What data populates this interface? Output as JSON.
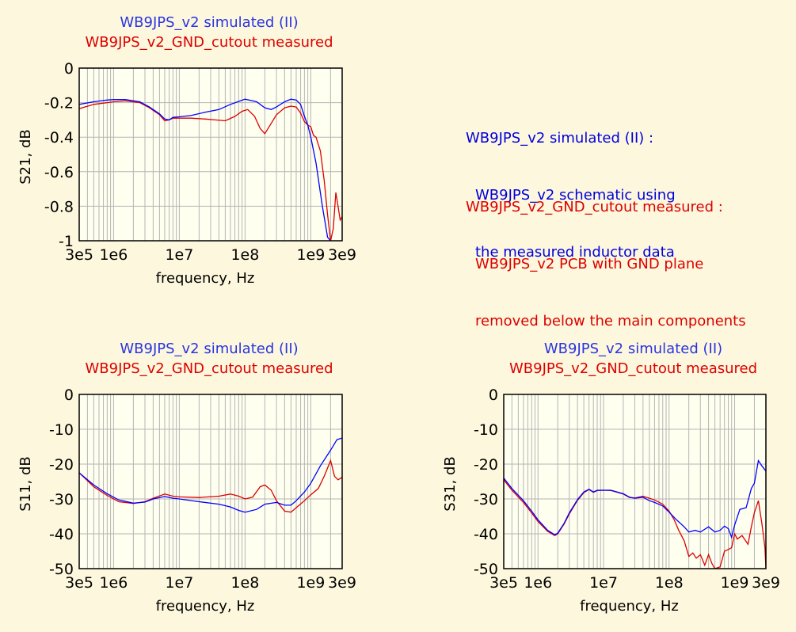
{
  "colors": {
    "background": "#fdf8dd",
    "simulated": "#0000ff",
    "measured": "#dd0000",
    "grid": "#b5b5b5",
    "frame": "#000000"
  },
  "notes": [
    {
      "color": "#0000dd",
      "lines": [
        "WB9JPS_v2 simulated (II) :",
        "WB9JPS_v2 schematic using",
        "the measured inductor data"
      ]
    },
    {
      "color": "#dd0000",
      "lines": [
        "WB9JPS_v2_GND_cutout measured :",
        "WB9JPS_v2 PCB with GND plane",
        "removed below the main components"
      ]
    }
  ],
  "chart_data": [
    {
      "id": "s21",
      "type": "line",
      "title_lines": [
        "WB9JPS_v2 simulated (II)",
        "WB9JPS_v2_GND_cutout measured"
      ],
      "xlabel": "frequency, Hz",
      "ylabel": "S21, dB",
      "x_scale": "log",
      "xlim": [
        300000.0,
        3000000000.0
      ],
      "ylim": [
        -1,
        0
      ],
      "xticks": [
        {
          "v": 300000.0,
          "label": "3e5"
        },
        {
          "v": 1000000.0,
          "label": "1e6"
        },
        {
          "v": 10000000.0,
          "label": "1e7"
        },
        {
          "v": 100000000.0,
          "label": "1e8"
        },
        {
          "v": 1000000000.0,
          "label": "1e9"
        },
        {
          "v": 3000000000.0,
          "label": "3e9"
        }
      ],
      "yticks": [
        {
          "v": 0,
          "label": "0"
        },
        {
          "v": -0.2,
          "label": "-0.2"
        },
        {
          "v": -0.4,
          "label": "-0.4"
        },
        {
          "v": -0.6,
          "label": "-0.6"
        },
        {
          "v": -0.8,
          "label": "-0.8"
        },
        {
          "v": -1,
          "label": "-1"
        }
      ],
      "grid": true,
      "series": [
        {
          "name": "WB9JPS_v2 simulated (II)",
          "color": "#0000ff",
          "x": [
            300000.0,
            500000.0,
            800000.0,
            1000000.0,
            1500000.0,
            2500000.0,
            3500000.0,
            5000000.0,
            6000000.0,
            7000000.0,
            8000000.0,
            10000000.0,
            15000000.0,
            25000000.0,
            40000000.0,
            60000000.0,
            100000000.0,
            150000000.0,
            200000000.0,
            250000000.0,
            300000000.0,
            400000000.0,
            500000000.0,
            600000000.0,
            700000000.0,
            800000000.0,
            900000000.0,
            1000000000.0,
            1200000000.0,
            1500000000.0,
            1800000000.0,
            2000000000.0
          ],
          "y": [
            -0.21,
            -0.195,
            -0.185,
            -0.182,
            -0.182,
            -0.195,
            -0.225,
            -0.265,
            -0.295,
            -0.3,
            -0.285,
            -0.282,
            -0.275,
            -0.255,
            -0.24,
            -0.21,
            -0.18,
            -0.195,
            -0.23,
            -0.24,
            -0.225,
            -0.195,
            -0.18,
            -0.185,
            -0.21,
            -0.28,
            -0.33,
            -0.4,
            -0.55,
            -0.8,
            -0.98,
            -1.0
          ]
        },
        {
          "name": "WB9JPS_v2_GND_cutout measured",
          "color": "#dd0000",
          "x": [
            300000.0,
            500000.0,
            800000.0,
            1000000.0,
            1500000.0,
            2500000.0,
            3500000.0,
            5000000.0,
            6000000.0,
            7000000.0,
            8000000.0,
            10000000.0,
            15000000.0,
            25000000.0,
            35000000.0,
            50000000.0,
            70000000.0,
            90000000.0,
            110000000.0,
            140000000.0,
            170000000.0,
            200000000.0,
            250000000.0,
            300000000.0,
            400000000.0,
            500000000.0,
            600000000.0,
            700000000.0,
            800000000.0,
            900000000.0,
            1000000000.0,
            1100000000.0,
            1200000000.0,
            1400000000.0,
            1600000000.0,
            1800000000.0,
            2000000000.0,
            2200000000.0,
            2400000000.0,
            2600000000.0,
            2800000000.0,
            3000000000.0
          ],
          "y": [
            -0.235,
            -0.21,
            -0.2,
            -0.195,
            -0.19,
            -0.2,
            -0.23,
            -0.27,
            -0.305,
            -0.3,
            -0.29,
            -0.29,
            -0.29,
            -0.295,
            -0.3,
            -0.305,
            -0.28,
            -0.25,
            -0.24,
            -0.28,
            -0.35,
            -0.38,
            -0.32,
            -0.27,
            -0.23,
            -0.22,
            -0.225,
            -0.26,
            -0.31,
            -0.33,
            -0.34,
            -0.39,
            -0.4,
            -0.48,
            -0.65,
            -0.85,
            -1.0,
            -0.93,
            -0.72,
            -0.8,
            -0.88,
            -0.86
          ]
        }
      ]
    },
    {
      "id": "s11",
      "type": "line",
      "title_lines": [
        "WB9JPS_v2 simulated (II)",
        "WB9JPS_v2_GND_cutout measured"
      ],
      "xlabel": "frequency, Hz",
      "ylabel": "S11, dB",
      "x_scale": "log",
      "xlim": [
        300000.0,
        3000000000.0
      ],
      "ylim": [
        -50,
        0
      ],
      "xticks": [
        {
          "v": 300000.0,
          "label": "3e5"
        },
        {
          "v": 1000000.0,
          "label": "1e6"
        },
        {
          "v": 10000000.0,
          "label": "1e7"
        },
        {
          "v": 100000000.0,
          "label": "1e8"
        },
        {
          "v": 1000000000.0,
          "label": "1e9"
        },
        {
          "v": 3000000000.0,
          "label": "3e9"
        }
      ],
      "yticks": [
        {
          "v": 0,
          "label": "0"
        },
        {
          "v": -10,
          "label": "-10"
        },
        {
          "v": -20,
          "label": "-20"
        },
        {
          "v": -30,
          "label": "-30"
        },
        {
          "v": -40,
          "label": "-40"
        },
        {
          "v": -50,
          "label": "-50"
        }
      ],
      "grid": true,
      "series": [
        {
          "name": "WB9JPS_v2 simulated (II)",
          "color": "#0000ff",
          "x": [
            300000.0,
            500000.0,
            800000.0,
            1200000.0,
            2000000.0,
            3000000.0,
            4000000.0,
            6000000.0,
            8000000.0,
            10000000.0,
            20000000.0,
            40000000.0,
            60000000.0,
            80000000.0,
            100000000.0,
            150000000.0,
            200000000.0,
            300000000.0,
            400000000.0,
            500000000.0,
            600000000.0,
            800000000.0,
            1000000000.0,
            1400000000.0,
            2000000000.0,
            2500000000.0,
            3000000000.0
          ],
          "y": [
            -22.5,
            -26,
            -28.5,
            -30.3,
            -31.2,
            -30.9,
            -30,
            -29.3,
            -29.8,
            -30,
            -30.8,
            -31.5,
            -32.3,
            -33.3,
            -33.8,
            -33,
            -31.5,
            -31,
            -31.8,
            -31.8,
            -30.5,
            -28,
            -25.5,
            -20.5,
            -16,
            -13,
            -12.5
          ]
        },
        {
          "name": "WB9JPS_v2_GND_cutout measured",
          "color": "#dd0000",
          "x": [
            300000.0,
            500000.0,
            800000.0,
            1200000.0,
            2000000.0,
            3000000.0,
            4000000.0,
            6000000.0,
            8000000.0,
            10000000.0,
            20000000.0,
            40000000.0,
            60000000.0,
            80000000.0,
            100000000.0,
            130000000.0,
            170000000.0,
            200000000.0,
            250000000.0,
            300000000.0,
            400000000.0,
            500000000.0,
            600000000.0,
            800000000.0,
            1000000000.0,
            1300000000.0,
            1600000000.0,
            2000000000.0,
            2300000000.0,
            2600000000.0,
            3000000000.0
          ],
          "y": [
            -22.5,
            -26.5,
            -29,
            -30.8,
            -31.3,
            -30.8,
            -29.8,
            -28.6,
            -29.2,
            -29.4,
            -29.6,
            -29.2,
            -28.6,
            -29.2,
            -30,
            -29.5,
            -26.5,
            -26,
            -27.5,
            -30.5,
            -33.5,
            -33.8,
            -32.5,
            -30.5,
            -28.8,
            -27,
            -23.5,
            -19,
            -23.5,
            -24.5,
            -23.8
          ]
        }
      ]
    },
    {
      "id": "s31",
      "type": "line",
      "title_lines": [
        "WB9JPS_v2 simulated (II)",
        "WB9JPS_v2_GND_cutout measured"
      ],
      "xlabel": "frequency, Hz",
      "ylabel": "S31, dB",
      "x_scale": "log",
      "xlim": [
        300000.0,
        3000000000.0
      ],
      "ylim": [
        -50,
        0
      ],
      "xticks": [
        {
          "v": 300000.0,
          "label": "3e5"
        },
        {
          "v": 1000000.0,
          "label": "1e6"
        },
        {
          "v": 10000000.0,
          "label": "1e7"
        },
        {
          "v": 100000000.0,
          "label": "1e8"
        },
        {
          "v": 1000000000.0,
          "label": "1e9"
        },
        {
          "v": 3000000000.0,
          "label": "3e9"
        }
      ],
      "yticks": [
        {
          "v": 0,
          "label": "0"
        },
        {
          "v": -10,
          "label": "-10"
        },
        {
          "v": -20,
          "label": "-20"
        },
        {
          "v": -30,
          "label": "-30"
        },
        {
          "v": -40,
          "label": "-40"
        },
        {
          "v": -50,
          "label": "-50"
        }
      ],
      "grid": true,
      "series": [
        {
          "name": "WB9JPS_v2 simulated (II)",
          "color": "#0000ff",
          "x": [
            300000.0,
            400000.0,
            600000.0,
            800000.0,
            1000000.0,
            1400000.0,
            1800000.0,
            2000000.0,
            2500000.0,
            3000000.0,
            4000000.0,
            5000000.0,
            6000000.0,
            7000000.0,
            8000000.0,
            10000000.0,
            13000000.0,
            20000000.0,
            25000000.0,
            30000000.0,
            40000000.0,
            50000000.0,
            60000000.0,
            80000000.0,
            100000000.0,
            130000000.0,
            170000000.0,
            200000000.0,
            250000000.0,
            300000000.0,
            400000000.0,
            500000000.0,
            600000000.0,
            700000000.0,
            800000000.0,
            900000000.0,
            1000000000.0,
            1200000000.0,
            1500000000.0,
            1800000000.0,
            2000000000.0,
            2300000000.0,
            2600000000.0,
            3000000000.0
          ],
          "y": [
            -24,
            -27,
            -30.5,
            -33.5,
            -36,
            -39,
            -40.3,
            -39.8,
            -37,
            -34,
            -30.2,
            -28,
            -27.2,
            -28,
            -27.5,
            -27.5,
            -27.5,
            -28.5,
            -29.5,
            -29.8,
            -29.5,
            -30.5,
            -31,
            -32,
            -33.8,
            -36,
            -38,
            -39.5,
            -39,
            -39.5,
            -38,
            -39.5,
            -39,
            -37.8,
            -38.5,
            -41,
            -37.5,
            -33,
            -32.5,
            -27,
            -25.5,
            -19,
            -20.5,
            -22
          ]
        },
        {
          "name": "WB9JPS_v2_GND_cutout measured",
          "color": "#dd0000",
          "x": [
            300000.0,
            400000.0,
            600000.0,
            800000.0,
            1000000.0,
            1400000.0,
            1800000.0,
            2000000.0,
            2500000.0,
            3000000.0,
            4000000.0,
            5000000.0,
            6000000.0,
            7000000.0,
            8000000.0,
            10000000.0,
            13000000.0,
            20000000.0,
            25000000.0,
            30000000.0,
            40000000.0,
            50000000.0,
            60000000.0,
            80000000.0,
            100000000.0,
            120000000.0,
            140000000.0,
            170000000.0,
            200000000.0,
            230000000.0,
            260000000.0,
            300000000.0,
            350000000.0,
            400000000.0,
            450000000.0,
            500000000.0,
            600000000.0,
            700000000.0,
            800000000.0,
            900000000.0,
            1000000000.0,
            1100000000.0,
            1300000000.0,
            1600000000.0,
            1800000000.0,
            2000000000.0,
            2300000000.0,
            2600000000.0,
            2900000000.0,
            3000000000.0
          ],
          "y": [
            -24.5,
            -27.5,
            -31,
            -34,
            -36.5,
            -39.3,
            -40.5,
            -40,
            -37.2,
            -34.3,
            -30.4,
            -28.2,
            -27.3,
            -28.1,
            -27.6,
            -27.5,
            -27.6,
            -28.6,
            -29.6,
            -29.7,
            -29.2,
            -29.8,
            -30.3,
            -31.5,
            -33.5,
            -36,
            -39,
            -42,
            -46.5,
            -45.5,
            -47,
            -46,
            -49,
            -46,
            -48.5,
            -50,
            -49.5,
            -45,
            -44.5,
            -44,
            -40,
            -41.5,
            -40.5,
            -43,
            -38,
            -34,
            -30.5,
            -37,
            -44,
            -50
          ]
        }
      ]
    }
  ]
}
